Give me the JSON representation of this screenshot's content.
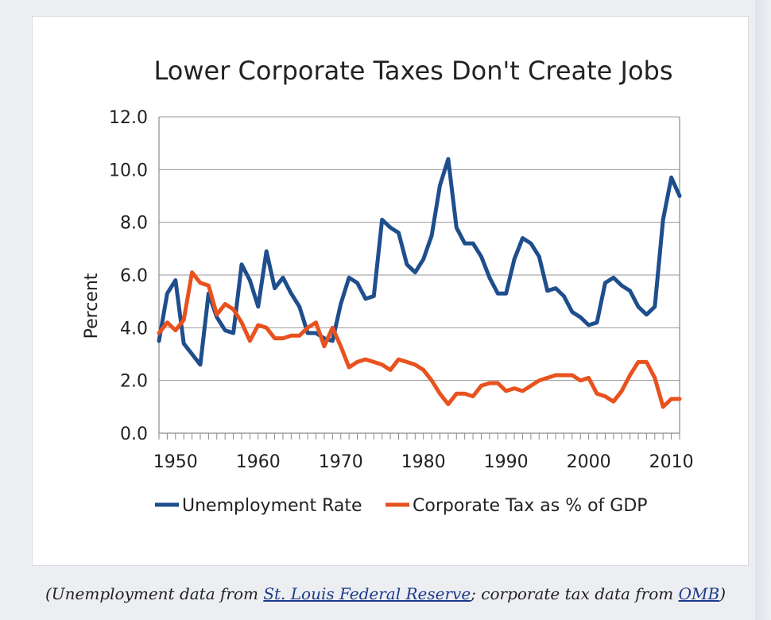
{
  "caption": {
    "prefix": "(Unemployment data from ",
    "link1": "St. Louis Federal Reserve",
    "middle": "; corporate tax data from ",
    "link2": "OMB",
    "suffix": ")"
  },
  "colors": {
    "unemployment": "#1f4e8c",
    "corporate_tax": "#e8521e",
    "grid": "#9a9a9a"
  },
  "chart_data": {
    "type": "line",
    "title": "Lower Corporate Taxes Don't Create Jobs",
    "ylabel": "Percent",
    "xlabel": "",
    "xlim": [
      1948,
      2011
    ],
    "ylim": [
      0,
      12
    ],
    "yticks": [
      "0.0",
      "2.0",
      "4.0",
      "6.0",
      "8.0",
      "10.0",
      "12.0"
    ],
    "xticks": [
      "1950",
      "1960",
      "1970",
      "1980",
      "1990",
      "2000",
      "2010"
    ],
    "grid": "horizontal",
    "legend": "bottom",
    "series": [
      {
        "name": "Unemployment Rate",
        "x": [
          1948,
          1949,
          1950,
          1951,
          1952,
          1953,
          1954,
          1955,
          1956,
          1957,
          1958,
          1959,
          1960,
          1961,
          1962,
          1963,
          1964,
          1965,
          1966,
          1967,
          1968,
          1969,
          1970,
          1971,
          1972,
          1973,
          1974,
          1975,
          1976,
          1977,
          1978,
          1979,
          1980,
          1981,
          1982,
          1983,
          1984,
          1985,
          1986,
          1987,
          1988,
          1989,
          1990,
          1991,
          1992,
          1993,
          1994,
          1995,
          1996,
          1997,
          1998,
          1999,
          2000,
          2001,
          2002,
          2003,
          2004,
          2005,
          2006,
          2007,
          2008,
          2009,
          2010,
          2011
        ],
        "values": [
          3.5,
          5.3,
          5.8,
          3.4,
          3.0,
          2.6,
          5.3,
          4.4,
          3.9,
          3.8,
          6.4,
          5.8,
          4.8,
          6.9,
          5.5,
          5.9,
          5.3,
          4.8,
          3.8,
          3.8,
          3.6,
          3.5,
          4.9,
          5.9,
          5.7,
          5.1,
          5.2,
          8.1,
          7.8,
          7.6,
          6.4,
          6.1,
          6.6,
          7.5,
          9.4,
          10.4,
          7.8,
          7.2,
          7.2,
          6.7,
          5.9,
          5.3,
          5.3,
          6.6,
          7.4,
          7.2,
          6.7,
          5.4,
          5.5,
          5.2,
          4.6,
          4.4,
          4.1,
          4.2,
          5.7,
          5.9,
          5.6,
          5.4,
          4.8,
          4.5,
          4.8,
          8.1,
          9.7,
          9.0
        ]
      },
      {
        "name": "Corporate Tax as % of GDP",
        "x": [
          1948,
          1949,
          1950,
          1951,
          1952,
          1953,
          1954,
          1955,
          1956,
          1957,
          1958,
          1959,
          1960,
          1961,
          1962,
          1963,
          1964,
          1965,
          1966,
          1967,
          1968,
          1969,
          1970,
          1971,
          1972,
          1973,
          1974,
          1975,
          1976,
          1977,
          1978,
          1979,
          1980,
          1981,
          1982,
          1983,
          1984,
          1985,
          1986,
          1987,
          1988,
          1989,
          1990,
          1991,
          1992,
          1993,
          1994,
          1995,
          1996,
          1997,
          1998,
          1999,
          2000,
          2001,
          2002,
          2003,
          2004,
          2005,
          2006,
          2007,
          2008,
          2009,
          2010,
          2011
        ],
        "values": [
          3.8,
          4.2,
          3.9,
          4.3,
          6.1,
          5.7,
          5.6,
          4.5,
          4.9,
          4.7,
          4.2,
          3.5,
          4.1,
          4.0,
          3.6,
          3.6,
          3.7,
          3.7,
          4.0,
          4.2,
          3.3,
          4.0,
          3.3,
          2.5,
          2.7,
          2.8,
          2.7,
          2.6,
          2.4,
          2.8,
          2.7,
          2.6,
          2.4,
          2.0,
          1.5,
          1.1,
          1.5,
          1.5,
          1.4,
          1.8,
          1.9,
          1.9,
          1.6,
          1.7,
          1.6,
          1.8,
          2.0,
          2.1,
          2.2,
          2.2,
          2.2,
          2.0,
          2.1,
          1.5,
          1.4,
          1.2,
          1.6,
          2.2,
          2.7,
          2.7,
          2.1,
          1.0,
          1.3,
          1.3
        ]
      }
    ]
  }
}
